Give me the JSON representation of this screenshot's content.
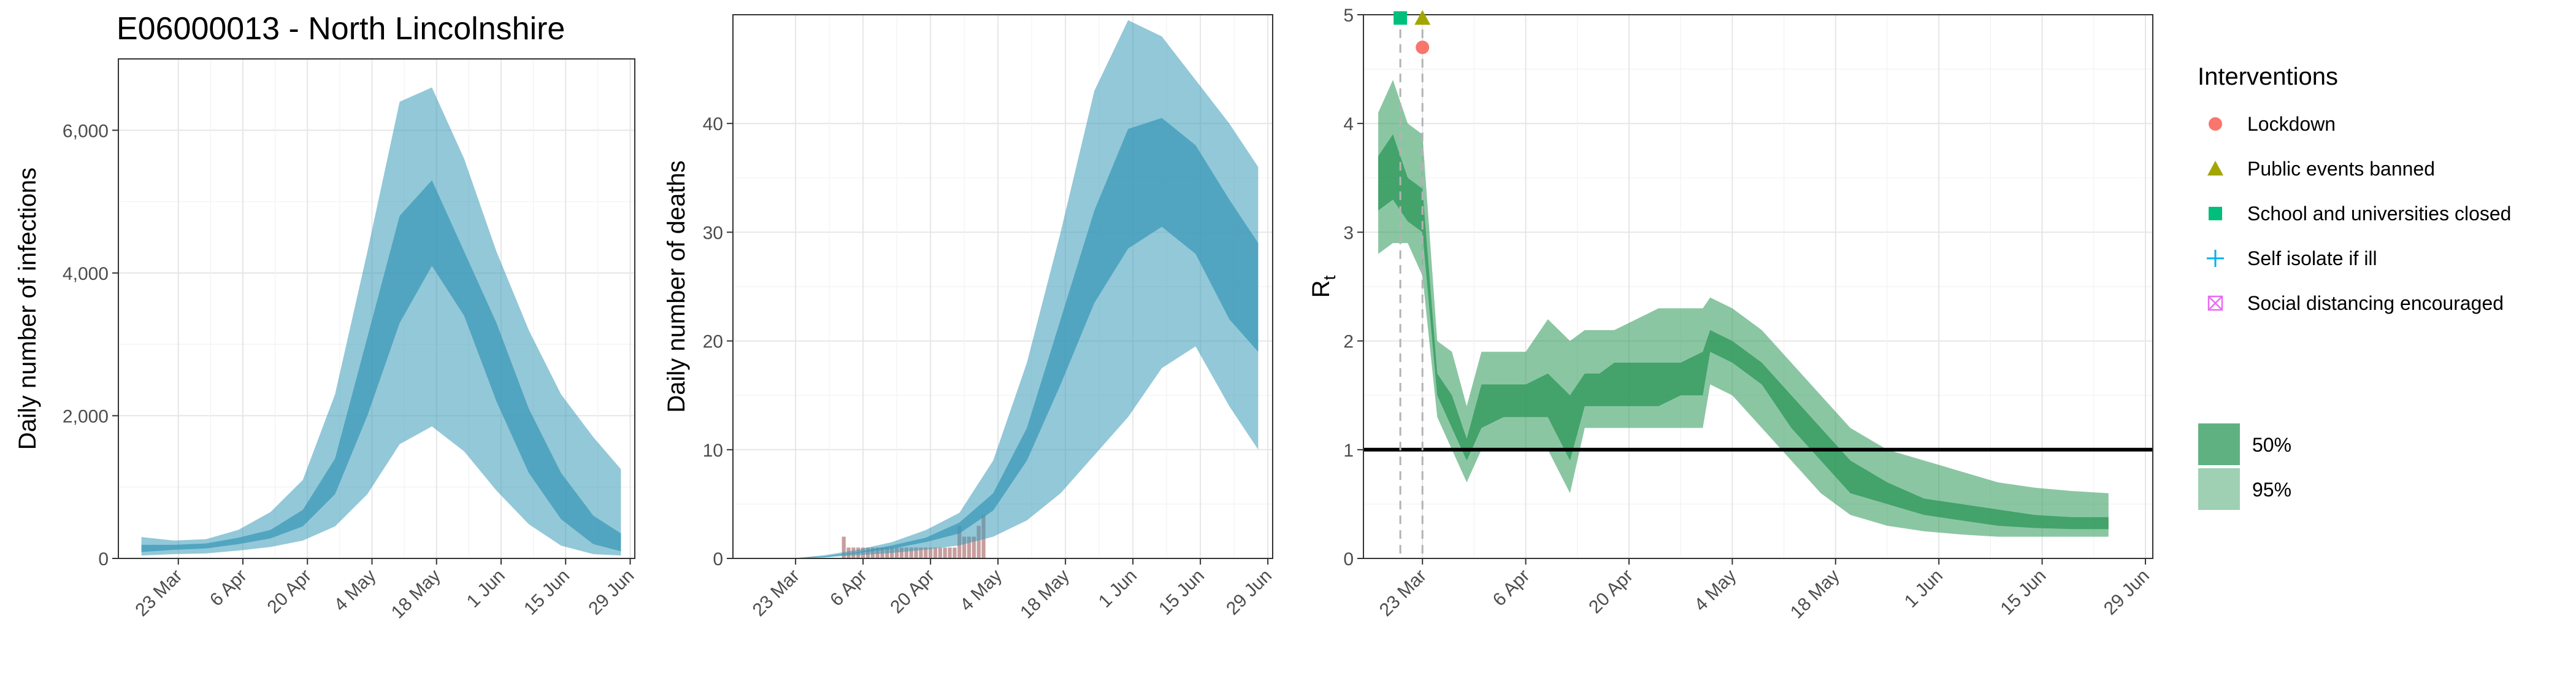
{
  "title": "E06000013 - North Lincolnshire",
  "colors": {
    "infections_band": "#3b9ab8",
    "rt_band": "#2b9758",
    "deaths_bar": "#c79e9e",
    "lockdown": "#f8766d",
    "public_events": "#a3a500",
    "school": "#00bf7d",
    "self_isolate": "#00b0f6",
    "social_distancing": "#e76bf3"
  },
  "legend": {
    "interventions_title": "Interventions",
    "interventions": [
      {
        "label": "Lockdown",
        "shape": "circle",
        "color": "#f8766d"
      },
      {
        "label": "Public events banned",
        "shape": "triangle",
        "color": "#a3a500"
      },
      {
        "label": "School and universities closed",
        "shape": "square",
        "color": "#00bf7d"
      },
      {
        "label": "Self isolate if ill",
        "shape": "plus",
        "color": "#00b0f6"
      },
      {
        "label": "Social distancing encouraged",
        "shape": "boxcross",
        "color": "#e76bf3"
      }
    ],
    "bands": [
      {
        "label": "50%",
        "opacity": 0.75
      },
      {
        "label": "95%",
        "opacity": 0.45
      }
    ]
  },
  "chart_data": [
    {
      "type": "area",
      "ylabel": "Daily number of infections",
      "xlabel": "",
      "xlim": [
        "2020-03-10",
        "2020-06-30"
      ],
      "ylim": [
        0,
        7000
      ],
      "x_ticks": [
        {
          "date": "2020-03-23",
          "label": "23 Mar"
        },
        {
          "date": "2020-04-06",
          "label": "6 Apr"
        },
        {
          "date": "2020-04-20",
          "label": "20 Apr"
        },
        {
          "date": "2020-05-04",
          "label": "4 May"
        },
        {
          "date": "2020-05-18",
          "label": "18 May"
        },
        {
          "date": "2020-06-01",
          "label": "1 Jun"
        },
        {
          "date": "2020-06-15",
          "label": "15 Jun"
        },
        {
          "date": "2020-06-29",
          "label": "29 Jun"
        }
      ],
      "y_ticks": [
        {
          "value": 0,
          "label": "0"
        },
        {
          "value": 2000,
          "label": "2,000"
        },
        {
          "value": 4000,
          "label": "4,000"
        },
        {
          "value": 6000,
          "label": "6,000"
        }
      ],
      "x": [
        "2020-03-15",
        "2020-03-22",
        "2020-03-29",
        "2020-04-05",
        "2020-04-12",
        "2020-04-19",
        "2020-04-26",
        "2020-05-03",
        "2020-05-10",
        "2020-05-17",
        "2020-05-24",
        "2020-05-31",
        "2020-06-07",
        "2020-06-14",
        "2020-06-21",
        "2020-06-27"
      ],
      "series": [
        {
          "name": "95%",
          "lower": [
            40,
            60,
            70,
            110,
            160,
            250,
            450,
            900,
            1600,
            1850,
            1500,
            950,
            480,
            180,
            60,
            40
          ],
          "upper": [
            300,
            250,
            270,
            400,
            650,
            1100,
            2300,
            4300,
            6400,
            6600,
            5600,
            4300,
            3200,
            2300,
            1700,
            1250
          ]
        },
        {
          "name": "50%",
          "lower": [
            90,
            120,
            140,
            200,
            280,
            450,
            900,
            2000,
            3300,
            4100,
            3400,
            2200,
            1200,
            550,
            200,
            100
          ],
          "upper": [
            190,
            190,
            210,
            290,
            400,
            680,
            1400,
            3100,
            4800,
            5300,
            4300,
            3300,
            2100,
            1200,
            600,
            350
          ]
        }
      ]
    },
    {
      "type": "area",
      "ylabel": "Daily number of deaths",
      "xlabel": "",
      "xlim": [
        "2020-03-10",
        "2020-06-30"
      ],
      "ylim": [
        0,
        50
      ],
      "x_ticks": [
        {
          "date": "2020-03-23",
          "label": "23 Mar"
        },
        {
          "date": "2020-04-06",
          "label": "6 Apr"
        },
        {
          "date": "2020-04-20",
          "label": "20 Apr"
        },
        {
          "date": "2020-05-04",
          "label": "4 May"
        },
        {
          "date": "2020-05-18",
          "label": "18 May"
        },
        {
          "date": "2020-06-01",
          "label": "1 Jun"
        },
        {
          "date": "2020-06-15",
          "label": "15 Jun"
        },
        {
          "date": "2020-06-29",
          "label": "29 Jun"
        }
      ],
      "y_ticks": [
        {
          "value": 0,
          "label": "0"
        },
        {
          "value": 10,
          "label": "10"
        },
        {
          "value": 20,
          "label": "20"
        },
        {
          "value": 30,
          "label": "30"
        },
        {
          "value": 40,
          "label": "40"
        }
      ],
      "x": [
        "2020-03-15",
        "2020-03-22",
        "2020-03-29",
        "2020-04-05",
        "2020-04-12",
        "2020-04-19",
        "2020-04-26",
        "2020-05-03",
        "2020-05-10",
        "2020-05-17",
        "2020-05-24",
        "2020-05-31",
        "2020-06-07",
        "2020-06-14",
        "2020-06-21",
        "2020-06-27"
      ],
      "series": [
        {
          "name": "95%",
          "lower": [
            0,
            0,
            0.1,
            0.3,
            0.5,
            0.8,
            1.2,
            2,
            3.5,
            6,
            9.5,
            13,
            17.5,
            19.5,
            14,
            10
          ],
          "upper": [
            0,
            0,
            0.3,
            0.8,
            1.5,
            2.6,
            4.2,
            9,
            18,
            30,
            43,
            49.5,
            48,
            44,
            40,
            36
          ]
        },
        {
          "name": "50%",
          "lower": [
            0,
            0,
            0.1,
            0.5,
            0.9,
            1.5,
            2.3,
            4.4,
            9,
            16,
            23.5,
            28.5,
            30.5,
            28,
            22,
            19
          ]
        },
        {
          "name": "50%-upper",
          "upper": [
            0,
            0,
            0.2,
            0.6,
            1.2,
            1.9,
            3.3,
            6,
            12,
            22,
            32,
            39.5,
            40.5,
            38,
            33,
            29
          ]
        }
      ],
      "observed_deaths": {
        "x": [
          "2020-04-02",
          "2020-04-03",
          "2020-04-04",
          "2020-04-05",
          "2020-04-06",
          "2020-04-07",
          "2020-04-08",
          "2020-04-09",
          "2020-04-10",
          "2020-04-11",
          "2020-04-12",
          "2020-04-13",
          "2020-04-14",
          "2020-04-15",
          "2020-04-16",
          "2020-04-17",
          "2020-04-18",
          "2020-04-19",
          "2020-04-20",
          "2020-04-21",
          "2020-04-22",
          "2020-04-23",
          "2020-04-24",
          "2020-04-25",
          "2020-04-26",
          "2020-04-27",
          "2020-04-28",
          "2020-04-29",
          "2020-04-30",
          "2020-05-01"
        ],
        "values": [
          2,
          1,
          1,
          1,
          1,
          1,
          1,
          1,
          1,
          1,
          1,
          1,
          1,
          1,
          1,
          1,
          1,
          1,
          1,
          1,
          1,
          1,
          1,
          1,
          3,
          2,
          2,
          2,
          3,
          4
        ]
      }
    },
    {
      "type": "area",
      "ylabel": "R",
      "ylabel_subscript": "t",
      "xlabel": "",
      "xlim": [
        "2020-03-15",
        "2020-06-30"
      ],
      "ylim": [
        0,
        5
      ],
      "reference_line": 1,
      "x_ticks": [
        {
          "date": "2020-03-23",
          "label": "23 Mar"
        },
        {
          "date": "2020-04-06",
          "label": "6 Apr"
        },
        {
          "date": "2020-04-20",
          "label": "20 Apr"
        },
        {
          "date": "2020-05-04",
          "label": "4 May"
        },
        {
          "date": "2020-05-18",
          "label": "18 May"
        },
        {
          "date": "2020-06-01",
          "label": "1 Jun"
        },
        {
          "date": "2020-06-15",
          "label": "15 Jun"
        },
        {
          "date": "2020-06-29",
          "label": "29 Jun"
        }
      ],
      "y_ticks": [
        {
          "value": 0,
          "label": "0"
        },
        {
          "value": 1,
          "label": "1"
        },
        {
          "value": 2,
          "label": "2"
        },
        {
          "value": 3,
          "label": "3"
        },
        {
          "value": 4,
          "label": "4"
        },
        {
          "value": 5,
          "label": "5"
        }
      ],
      "x": [
        "2020-03-17",
        "2020-03-19",
        "2020-03-21",
        "2020-03-23",
        "2020-03-25",
        "2020-03-27",
        "2020-03-29",
        "2020-03-31",
        "2020-04-03",
        "2020-04-06",
        "2020-04-09",
        "2020-04-12",
        "2020-04-14",
        "2020-04-16",
        "2020-04-18",
        "2020-04-21",
        "2020-04-24",
        "2020-04-27",
        "2020-04-30",
        "2020-05-01",
        "2020-05-04",
        "2020-05-08",
        "2020-05-12",
        "2020-05-16",
        "2020-05-20",
        "2020-05-25",
        "2020-05-30",
        "2020-06-04",
        "2020-06-09",
        "2020-06-14",
        "2020-06-19",
        "2020-06-24"
      ],
      "series": [
        {
          "name": "95%",
          "lower": [
            2.8,
            2.9,
            2.9,
            2.6,
            1.3,
            1.0,
            0.7,
            1.0,
            1.0,
            1.0,
            1.0,
            0.6,
            1.2,
            1.2,
            1.2,
            1.2,
            1.2,
            1.2,
            1.2,
            1.6,
            1.5,
            1.2,
            0.9,
            0.6,
            0.4,
            0.3,
            0.25,
            0.22,
            0.2,
            0.2,
            0.2,
            0.2
          ],
          "upper": [
            4.1,
            4.4,
            4.0,
            3.9,
            2.0,
            1.9,
            1.4,
            1.9,
            1.9,
            1.9,
            2.2,
            2.0,
            2.1,
            2.1,
            2.1,
            2.2,
            2.3,
            2.3,
            2.3,
            2.4,
            2.3,
            2.1,
            1.8,
            1.5,
            1.2,
            1.0,
            0.9,
            0.8,
            0.7,
            0.65,
            0.62,
            0.6
          ]
        },
        {
          "name": "50%",
          "lower": [
            3.2,
            3.3,
            3.1,
            3.0,
            1.5,
            1.2,
            0.9,
            1.2,
            1.3,
            1.3,
            1.3,
            0.9,
            1.4,
            1.4,
            1.4,
            1.4,
            1.4,
            1.5,
            1.5,
            1.9,
            1.8,
            1.6,
            1.2,
            0.9,
            0.6,
            0.5,
            0.4,
            0.35,
            0.3,
            0.28,
            0.27,
            0.27
          ],
          "upper": [
            3.7,
            3.9,
            3.5,
            3.4,
            1.7,
            1.5,
            1.1,
            1.6,
            1.6,
            1.6,
            1.7,
            1.5,
            1.7,
            1.7,
            1.8,
            1.8,
            1.8,
            1.8,
            1.9,
            2.1,
            2.0,
            1.8,
            1.5,
            1.2,
            0.9,
            0.7,
            0.55,
            0.5,
            0.45,
            0.4,
            0.38,
            0.38
          ]
        }
      ],
      "interventions": [
        {
          "label": "School and universities closed",
          "date": "2020-03-20",
          "y": 4.97,
          "shape": "square",
          "color": "#00bf7d"
        },
        {
          "label": "Public events banned",
          "date": "2020-03-23",
          "y": 4.97,
          "shape": "triangle",
          "color": "#a3a500"
        },
        {
          "label": "Lockdown",
          "date": "2020-03-23",
          "y": 4.7,
          "shape": "circle",
          "color": "#f8766d"
        }
      ],
      "intervention_lines": [
        "2020-03-20",
        "2020-03-23"
      ]
    }
  ]
}
